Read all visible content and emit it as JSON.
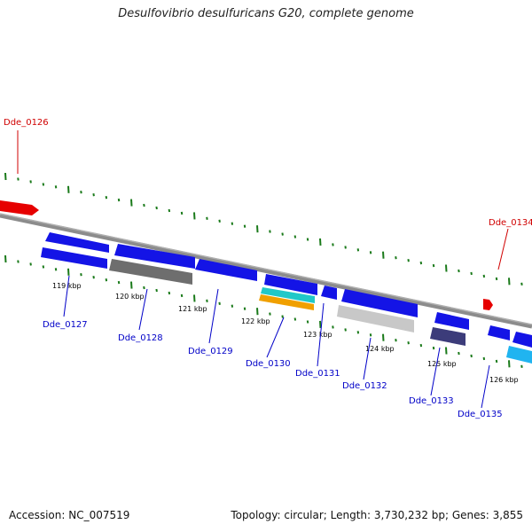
{
  "title": "Desulfovibrio desulfuricans G20, complete genome",
  "footer": {
    "accession": "Accession: NC_007519",
    "stats": "Topology: circular; Length: 3,730,232 bp; Genes: 3,855"
  },
  "colors": {
    "backbone": "#8c8c8c",
    "tick": "#1a7a1a",
    "blue_gene": "#1414e6",
    "red_gene": "#e60000",
    "gray_gene": "#6e6e6e",
    "light_gray_gene": "#c8c8c8",
    "teal_gene": "#20c8c8",
    "orange_gene": "#f0a000",
    "navy_gene": "#3c3c7a",
    "sky_gene": "#20b4f0",
    "label_blue": "#0000c8",
    "label_red": "#d00000"
  },
  "tick_labels": [
    "119 kbp",
    "120 kbp",
    "121 kbp",
    "122 kbp",
    "123 kbp",
    "124 kbp",
    "125 kbp",
    "126 kbp"
  ],
  "gene_labels": [
    {
      "text": "Dde_0126",
      "color": "red"
    },
    {
      "text": "Dde_0134",
      "color": "red"
    },
    {
      "text": "Dde_0127",
      "color": "blue"
    },
    {
      "text": "Dde_0128",
      "color": "blue"
    },
    {
      "text": "Dde_0129",
      "color": "blue"
    },
    {
      "text": "Dde_0130",
      "color": "blue"
    },
    {
      "text": "Dde_0131",
      "color": "blue"
    },
    {
      "text": "Dde_0132",
      "color": "blue"
    },
    {
      "text": "Dde_0133",
      "color": "blue"
    },
    {
      "text": "Dde_0135",
      "color": "blue"
    }
  ]
}
